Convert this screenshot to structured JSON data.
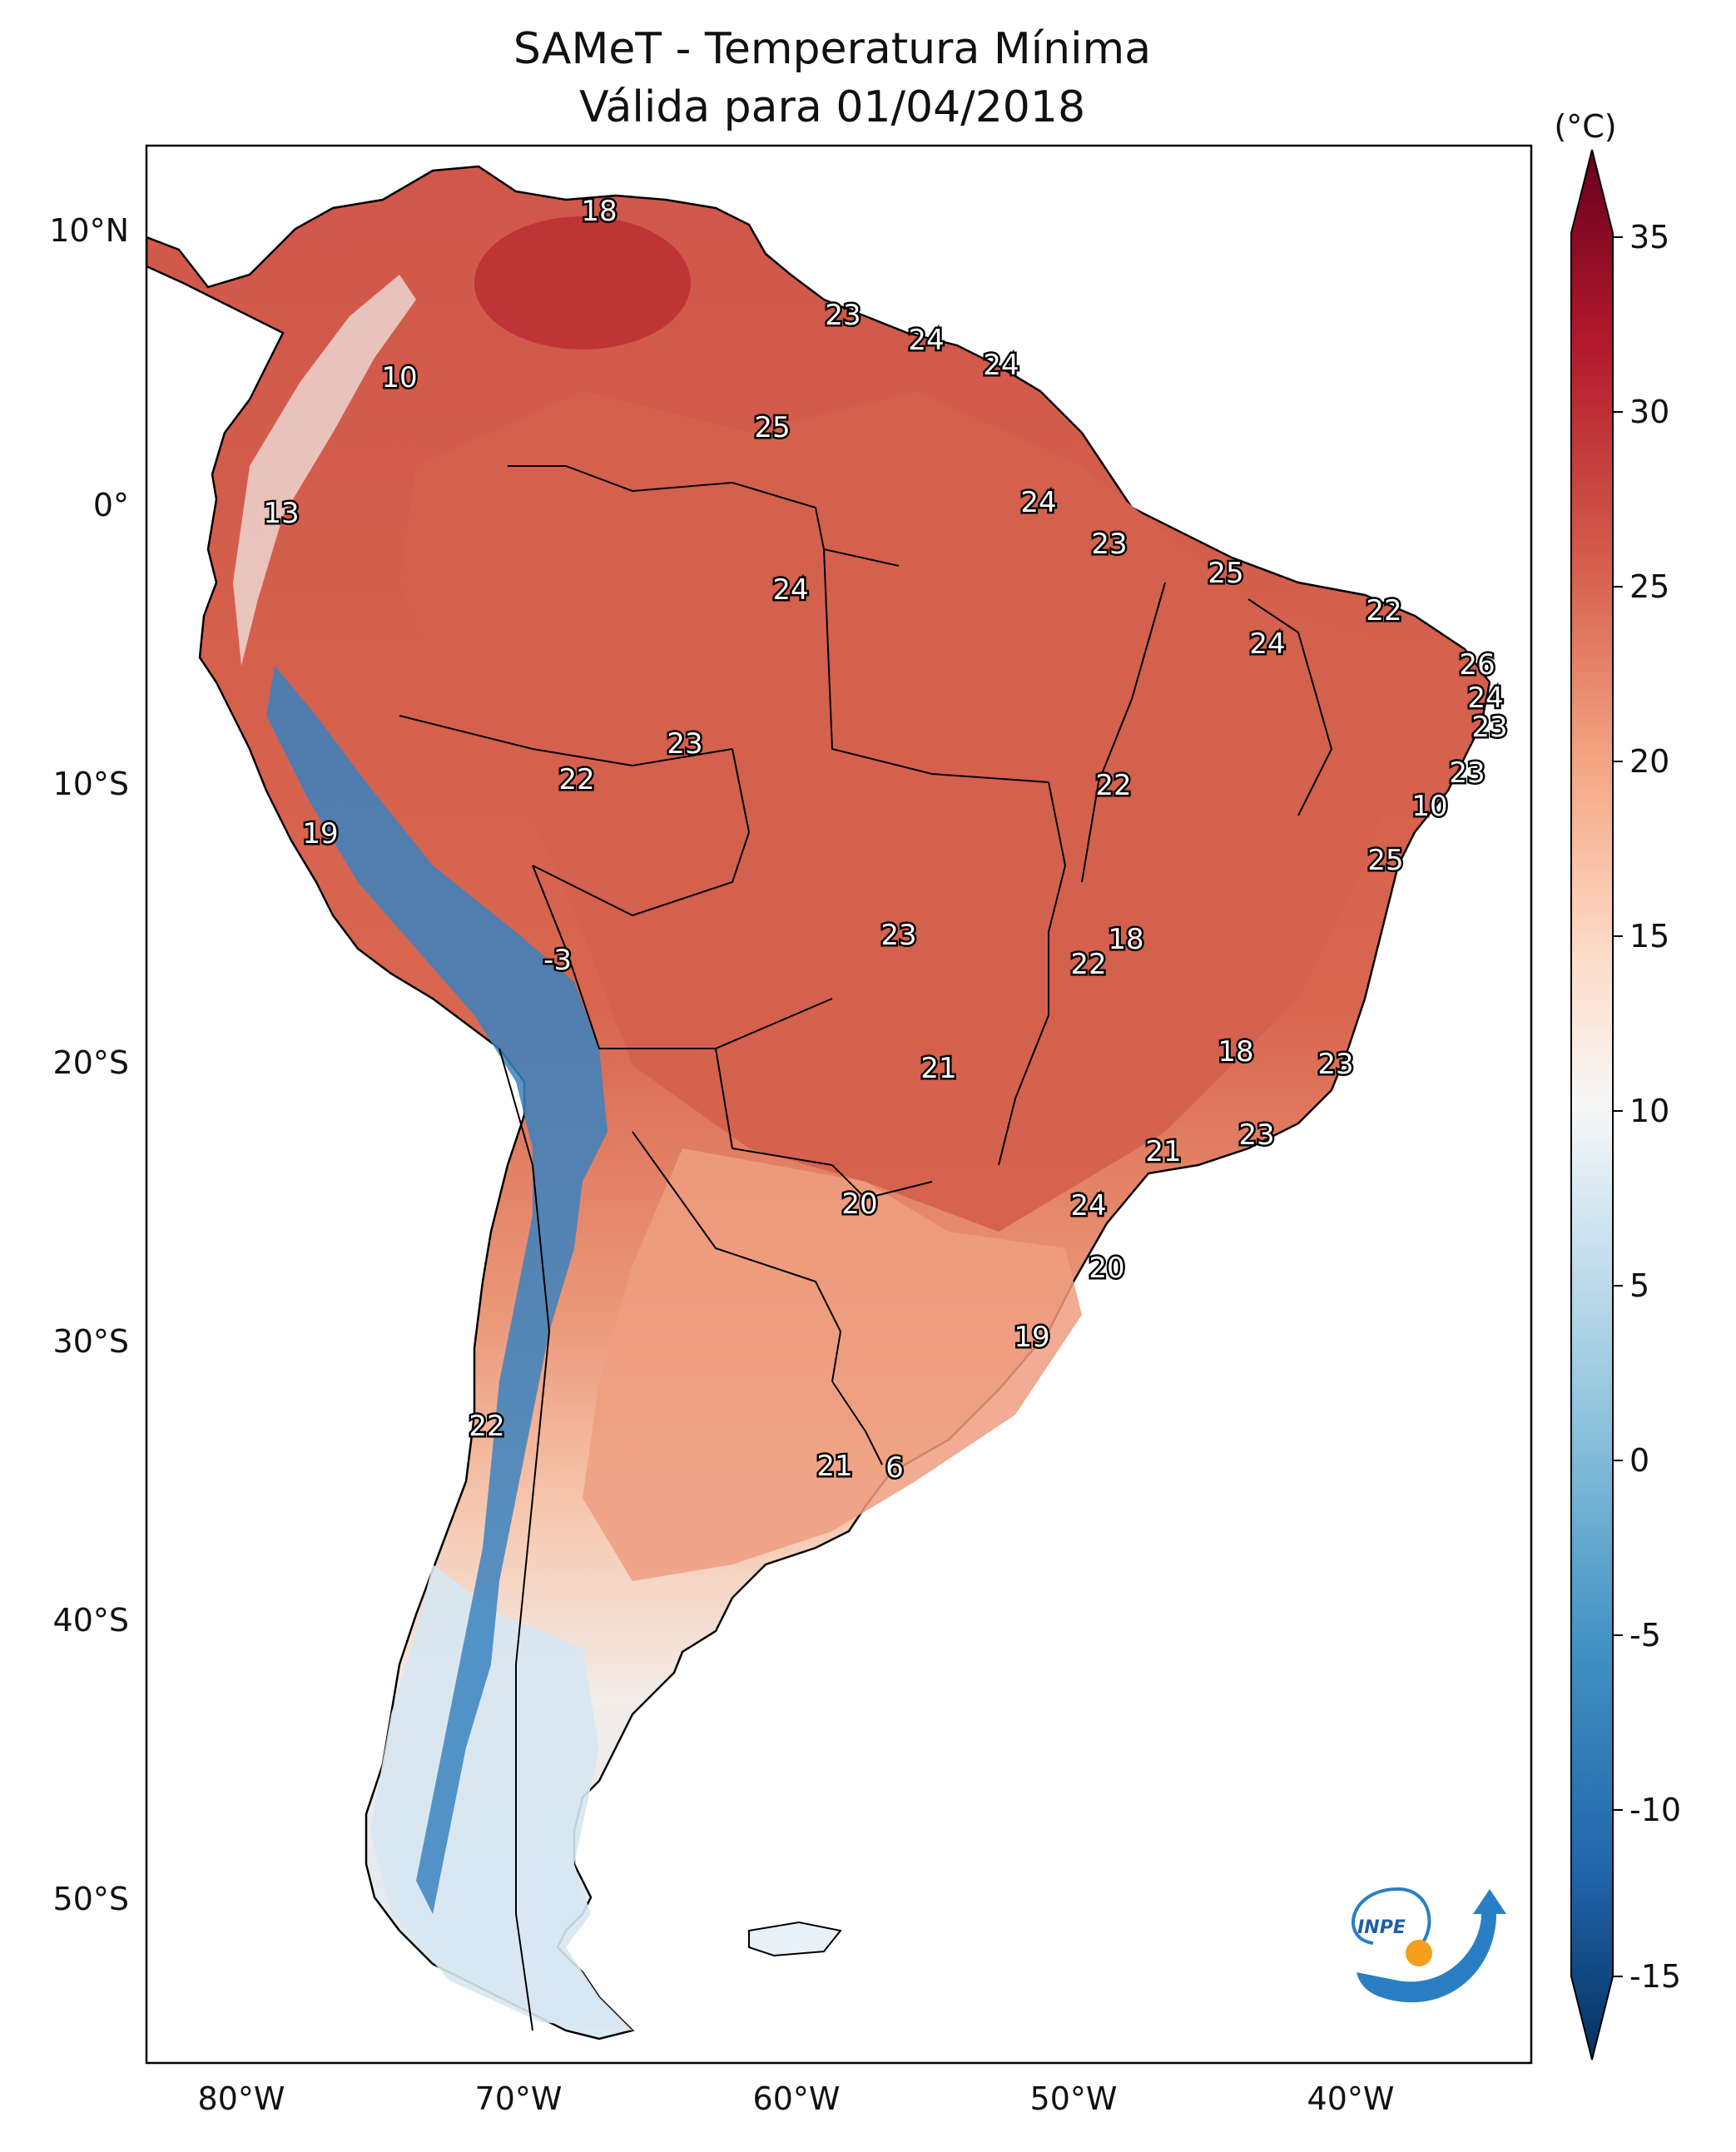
{
  "title": {
    "line1": "SAMeT - Temperatura Mínima",
    "line2": "Válida para 01/04/2018"
  },
  "map": {
    "lat_ticks": [
      "10°N",
      "0°",
      "10°S",
      "20°S",
      "30°S",
      "40°S",
      "50°S"
    ],
    "lon_ticks": [
      "80°W",
      "70°W",
      "60°W",
      "50°W",
      "40°W"
    ],
    "point_labels": [
      "18",
      "23",
      "24",
      "24",
      "10",
      "25",
      "13",
      "24",
      "23",
      "24",
      "25",
      "22",
      "24",
      "26",
      "24",
      "23",
      "23",
      "22",
      "23",
      "10",
      "22",
      "19",
      "-3",
      "23",
      "22",
      "25",
      "18",
      "21",
      "23",
      "21",
      "18",
      "23",
      "20",
      "24",
      "20",
      "19",
      "22",
      "21",
      "6",
      "20",
      "20"
    ]
  },
  "colorbar": {
    "unit": "(°C)",
    "ticks": [
      "35",
      "30",
      "25",
      "20",
      "15",
      "10",
      "5",
      "0",
      "-5",
      "-10",
      "-15"
    ]
  },
  "logo": {
    "text": "INPE"
  },
  "colors": {
    "warm": "#d6604d",
    "cool": "#4393c3",
    "border": "#000000"
  }
}
